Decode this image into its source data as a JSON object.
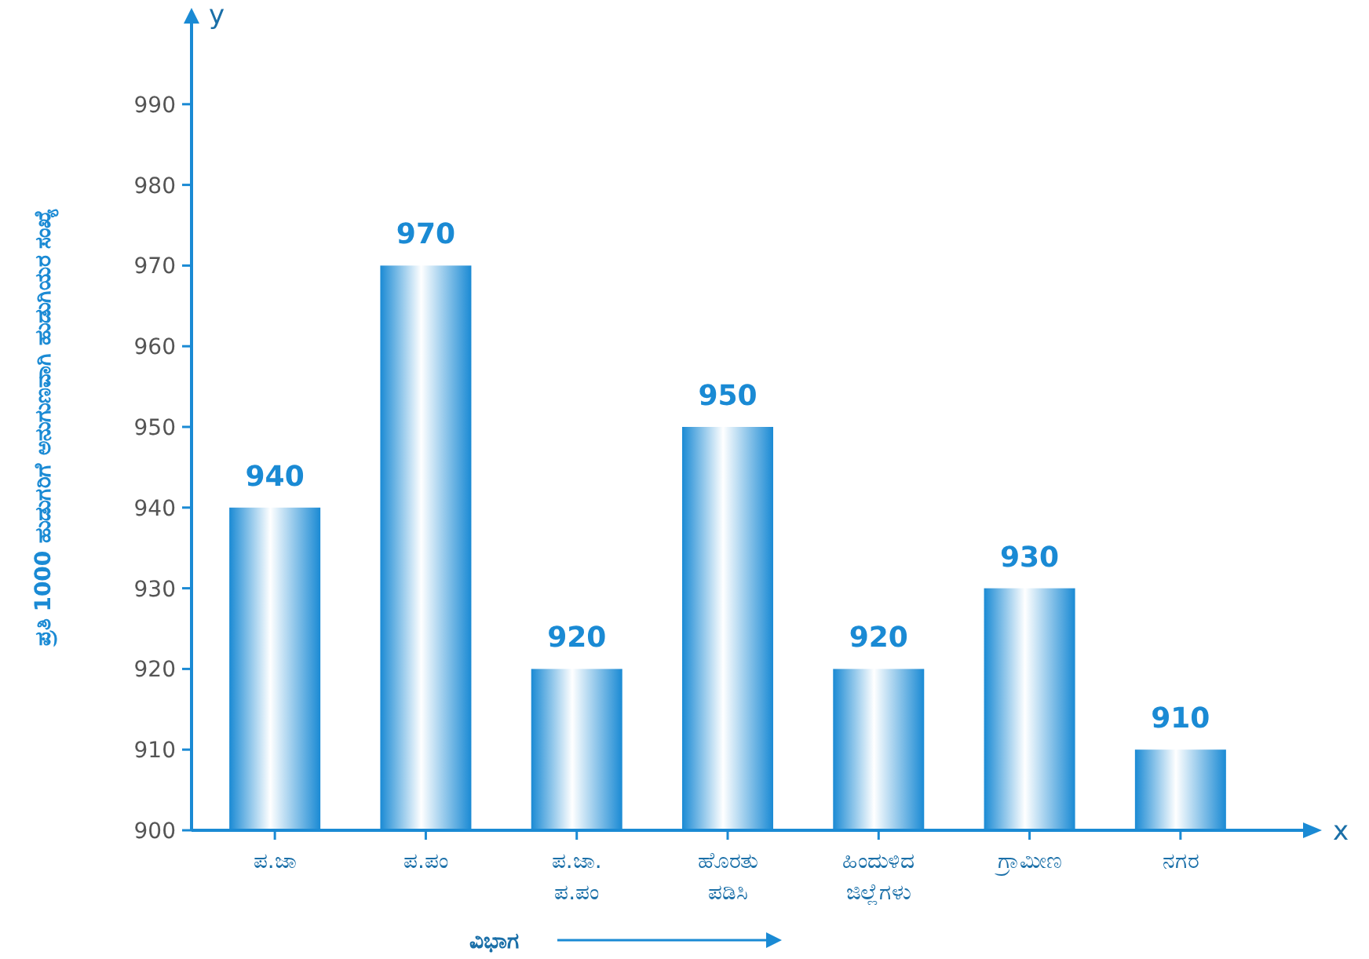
{
  "chart_data": {
    "type": "bar",
    "categories": [
      "ಪ.ಜಾ",
      "ಪ.ಪಂ",
      "ಪ.ಜಾ.\nಪ.ಪಂ",
      "ಹೊರತು\nಪಡಿಸಿ",
      "ಹಿಂದುಳಿದ\nಜಿಲ್ಲೆಗಳು",
      "ಗ್ರಾಮೀಣ",
      "ನಗರ"
    ],
    "values": [
      940,
      970,
      920,
      950,
      920,
      930,
      910
    ],
    "color": "#1a8ad4",
    "xlabel": "ವಿಭಾಗ",
    "ylabel": "ಪ್ರತಿ 1000 ಹುಡುಗರಿಗೆ ಅನುಗುಣವಾಗಿ ಹುಡುಗಿಯರ ಸಂಖ್ಯೆ",
    "annotations": [
      "x",
      "y"
    ],
    "ylim": [
      900,
      1000
    ],
    "yticks": [
      900,
      910,
      920,
      930,
      940,
      950,
      960,
      970,
      980,
      990
    ],
    "data_labels": true
  }
}
